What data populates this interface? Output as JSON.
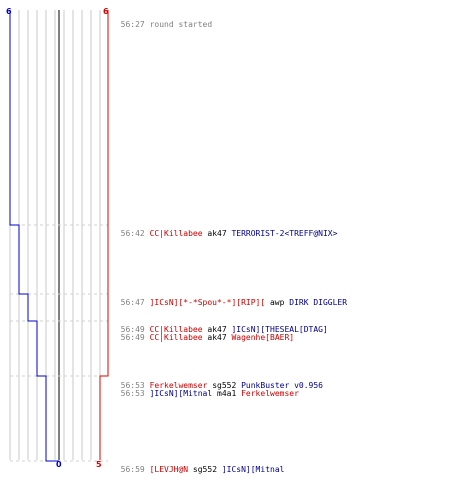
{
  "colors": {
    "team_blue": "#0000cc",
    "team_red": "#dd0000",
    "grid": "#c8c8c8",
    "center": "#808080",
    "dash": "#d0d0d0",
    "time": "#808080"
  },
  "scores": {
    "blue_top": "6",
    "red_top": "6",
    "blue_bottom": "0",
    "red_bottom": "5"
  },
  "events": [
    {
      "time": "56:27",
      "type": "info",
      "text": "round started"
    },
    {
      "time": "56:42",
      "killer": "CC|Killabee",
      "killer_team": "red",
      "weapon": "ak47",
      "victim": "TERRORIST-2<TREFF@NIX>",
      "victim_team": "blue"
    },
    {
      "time": "56:47",
      "killer": "]ICsN][*-*Spou*-*][RIP][",
      "killer_team": "red",
      "weapon": "awp",
      "victim": "DIRK DIGGLER",
      "victim_team": "blue"
    },
    {
      "time": "56:49",
      "killer": "CC|Killabee",
      "killer_team": "red",
      "weapon": "ak47",
      "victim": "]ICsN][THESEAL[DTAG]",
      "victim_team": "blue"
    },
    {
      "time": "56:49",
      "killer": "CC|Killabee",
      "killer_team": "red",
      "weapon": "ak47",
      "victim": "Wagenhe[BAER]",
      "victim_team": "red"
    },
    {
      "time": "56:53",
      "killer": "Ferkelwemser",
      "killer_team": "red",
      "weapon": "sg552",
      "victim": "PunkBuster v0.956",
      "victim_team": "blue"
    },
    {
      "time": "56:53",
      "killer": "]ICsN][Mitnal",
      "killer_team": "blue",
      "weapon": "m4a1",
      "victim": "Ferkelwemser",
      "victim_team": "red"
    },
    {
      "time": "56:59",
      "killer": "[LEVJH@N",
      "killer_team": "red",
      "weapon": "sg552",
      "victim": "]ICsN][Mitnal",
      "victim_team": "blue"
    }
  ]
}
